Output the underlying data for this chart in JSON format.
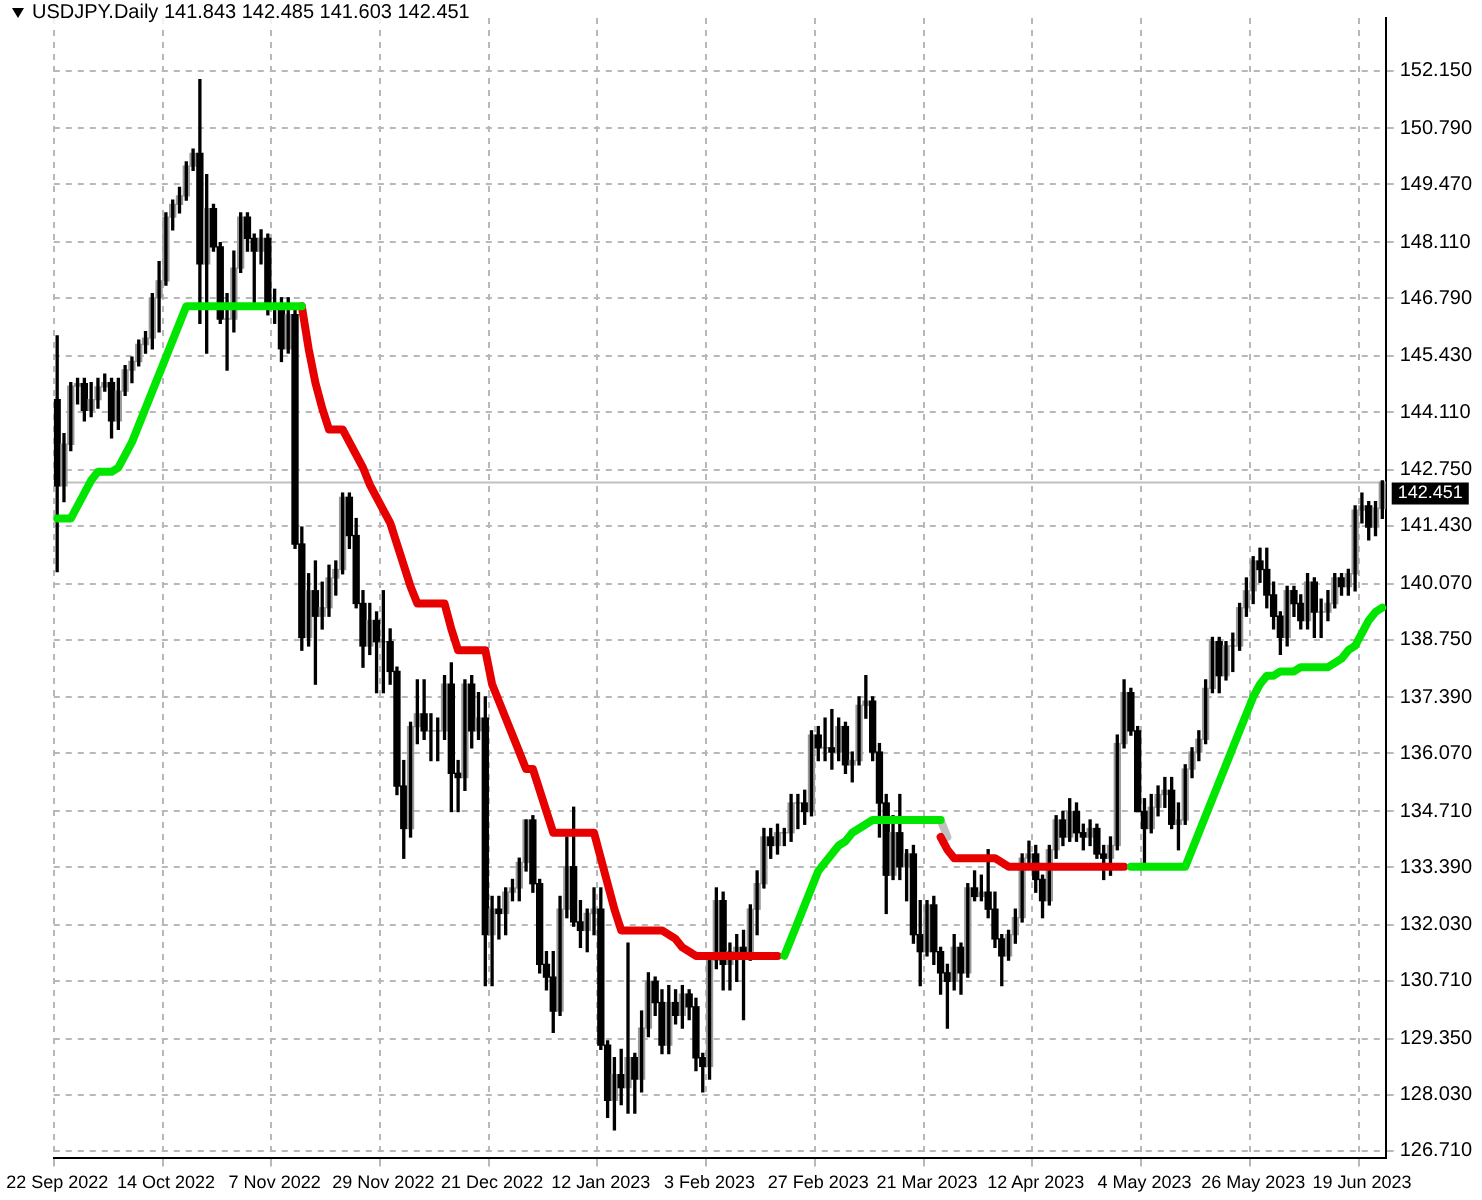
{
  "chart_data": {
    "type": "candlestick",
    "title": "USDJPY.Daily  141.843 142.485 141.603 142.451",
    "categories": [
      "22 Sep 2022",
      null,
      null,
      null,
      null,
      null,
      null,
      null,
      null,
      null,
      null,
      null,
      null,
      null,
      null,
      null,
      "14 Oct 2022",
      null,
      null,
      null,
      null,
      null,
      null,
      null,
      null,
      null,
      null,
      null,
      null,
      null,
      null,
      null,
      "7 Nov 2022",
      null,
      null,
      null,
      null,
      null,
      null,
      null,
      null,
      null,
      null,
      null,
      null,
      null,
      null,
      null,
      "29 Nov 2022",
      null,
      null,
      null,
      null,
      null,
      null,
      null,
      null,
      null,
      null,
      null,
      null,
      null,
      null,
      null,
      "21 Dec 2022",
      null,
      null,
      null,
      null,
      null,
      null,
      null,
      null,
      null,
      null,
      null,
      null,
      null,
      null,
      null,
      "12 Jan 2023",
      null,
      null,
      null,
      null,
      null,
      null,
      null,
      null,
      null,
      null,
      null,
      null,
      null,
      null,
      null,
      "3 Feb 2023",
      null,
      null,
      null,
      null,
      null,
      null,
      null,
      null,
      null,
      null,
      null,
      null,
      null,
      null,
      null,
      "27 Feb 2023",
      null,
      null,
      null,
      null,
      null,
      null,
      null,
      null,
      null,
      null,
      null,
      null,
      null,
      null,
      null,
      "21 Mar 2023",
      null,
      null,
      null,
      null,
      null,
      null,
      null,
      null,
      null,
      null,
      null,
      null,
      null,
      null,
      null,
      "12 Apr 2023",
      null,
      null,
      null,
      null,
      null,
      null,
      null,
      null,
      null,
      null,
      null,
      null,
      null,
      null,
      null,
      "4 May 2023",
      null,
      null,
      null,
      null,
      null,
      null,
      null,
      null,
      null,
      null,
      null,
      null,
      null,
      null,
      null,
      "26 May 2023",
      null,
      null,
      null,
      null,
      null,
      null,
      null,
      null,
      null,
      null,
      null,
      null,
      null,
      null,
      null,
      "19 Jun 2023",
      null,
      null,
      null
    ],
    "ohlc": [
      [
        144.4,
        145.9,
        140.35,
        142.37
      ],
      [
        142.37,
        143.6,
        142.0,
        143.35
      ],
      [
        143.35,
        144.8,
        143.2,
        144.72
      ],
      [
        144.72,
        144.9,
        144.3,
        144.78
      ],
      [
        144.78,
        144.9,
        143.9,
        144.15
      ],
      [
        144.15,
        144.8,
        144.0,
        144.4
      ],
      [
        144.4,
        144.9,
        144.2,
        144.7
      ],
      [
        144.7,
        145.0,
        144.6,
        144.8
      ],
      [
        144.8,
        144.9,
        143.5,
        143.9
      ],
      [
        143.9,
        144.9,
        143.7,
        144.6
      ],
      [
        144.6,
        145.2,
        144.5,
        145.1
      ],
      [
        145.1,
        145.4,
        144.8,
        145.3
      ],
      [
        145.3,
        145.8,
        145.2,
        145.7
      ],
      [
        145.7,
        146.0,
        145.5,
        145.85
      ],
      [
        145.85,
        146.9,
        145.6,
        146.8
      ],
      [
        146.8,
        147.65,
        146.0,
        147.2
      ],
      [
        147.2,
        148.8,
        147.1,
        148.7
      ],
      [
        148.7,
        149.1,
        148.4,
        149.0
      ],
      [
        149.0,
        149.4,
        148.8,
        149.2
      ],
      [
        149.2,
        150.0,
        149.1,
        149.9
      ],
      [
        149.9,
        150.3,
        149.8,
        150.2
      ],
      [
        150.2,
        151.94,
        146.2,
        147.6
      ],
      [
        147.6,
        149.7,
        145.5,
        148.9
      ],
      [
        148.9,
        149.0,
        147.9,
        148.0
      ],
      [
        148.0,
        148.1,
        146.2,
        146.3
      ],
      [
        146.3,
        146.9,
        145.1,
        146.3
      ],
      [
        146.3,
        147.9,
        146.0,
        147.5
      ],
      [
        147.5,
        148.8,
        147.4,
        148.7
      ],
      [
        148.7,
        148.8,
        147.9,
        148.2
      ],
      [
        148.2,
        148.3,
        146.6,
        147.9
      ],
      [
        147.9,
        148.4,
        147.6,
        148.2
      ],
      [
        148.2,
        148.3,
        146.4,
        146.6
      ],
      [
        146.6,
        147.0,
        146.2,
        146.6
      ],
      [
        146.6,
        146.8,
        145.3,
        145.6
      ],
      [
        145.6,
        146.8,
        145.5,
        146.4
      ],
      [
        146.4,
        146.6,
        140.9,
        141.0
      ],
      [
        141.0,
        141.4,
        138.5,
        138.8
      ],
      [
        138.8,
        140.3,
        138.6,
        139.9
      ],
      [
        139.9,
        140.6,
        137.7,
        139.3
      ],
      [
        139.3,
        140.1,
        139.0,
        139.5
      ],
      [
        139.5,
        140.5,
        139.3,
        140.2
      ],
      [
        140.2,
        140.6,
        139.8,
        140.4
      ],
      [
        140.4,
        142.2,
        140.3,
        142.1
      ],
      [
        142.1,
        142.2,
        140.9,
        141.2
      ],
      [
        141.2,
        141.6,
        139.5,
        139.6
      ],
      [
        139.6,
        139.9,
        138.1,
        138.6
      ],
      [
        138.6,
        139.6,
        138.4,
        139.2
      ],
      [
        139.2,
        139.4,
        137.5,
        138.7
      ],
      [
        138.7,
        139.9,
        137.5,
        138.7
      ],
      [
        138.7,
        139.0,
        137.7,
        138.0
      ],
      [
        138.0,
        138.1,
        135.1,
        135.3
      ],
      [
        135.3,
        135.9,
        133.6,
        134.3
      ],
      [
        134.3,
        136.8,
        134.1,
        136.7
      ],
      [
        136.7,
        137.8,
        136.3,
        137.0
      ],
      [
        137.0,
        137.8,
        136.4,
        136.6
      ],
      [
        136.6,
        137.0,
        135.9,
        136.6
      ],
      [
        136.6,
        136.9,
        135.9,
        136.6
      ],
      [
        136.6,
        137.9,
        136.4,
        137.7
      ],
      [
        137.7,
        138.2,
        134.7,
        135.6
      ],
      [
        135.6,
        135.9,
        134.7,
        135.5
      ],
      [
        135.5,
        137.8,
        135.2,
        137.7
      ],
      [
        137.7,
        137.9,
        136.2,
        136.6
      ],
      [
        136.6,
        137.5,
        136.4,
        136.9
      ],
      [
        136.9,
        137.4,
        130.6,
        131.8
      ],
      [
        131.8,
        132.7,
        130.6,
        132.4
      ],
      [
        132.4,
        132.7,
        131.7,
        132.3
      ],
      [
        132.3,
        132.9,
        131.8,
        132.8
      ],
      [
        132.8,
        133.1,
        132.6,
        132.9
      ],
      [
        132.9,
        133.6,
        132.6,
        133.5
      ],
      [
        133.5,
        134.5,
        133.3,
        134.5
      ],
      [
        134.5,
        134.6,
        132.8,
        133.0
      ],
      [
        133.0,
        133.1,
        130.9,
        131.1
      ],
      [
        131.1,
        131.4,
        130.5,
        130.8
      ],
      [
        130.8,
        131.4,
        129.5,
        130.0
      ],
      [
        130.0,
        132.7,
        129.9,
        132.4
      ],
      [
        132.4,
        134.1,
        132.2,
        133.4
      ],
      [
        133.4,
        134.8,
        132.0,
        132.1
      ],
      [
        132.1,
        132.6,
        131.5,
        131.9
      ],
      [
        131.9,
        132.4,
        131.4,
        132.3
      ],
      [
        132.3,
        132.9,
        131.8,
        132.4
      ],
      [
        132.4,
        132.9,
        129.1,
        129.2
      ],
      [
        129.2,
        129.3,
        127.5,
        127.9
      ],
      [
        127.9,
        128.9,
        127.2,
        128.5
      ],
      [
        128.5,
        129.1,
        127.8,
        128.2
      ],
      [
        128.2,
        131.6,
        127.6,
        128.9
      ],
      [
        128.9,
        129.0,
        127.6,
        128.4
      ],
      [
        128.4,
        130.0,
        128.1,
        129.6
      ],
      [
        129.6,
        130.9,
        129.4,
        130.7
      ],
      [
        130.7,
        130.8,
        129.9,
        130.2
      ],
      [
        130.2,
        130.5,
        129.0,
        129.2
      ],
      [
        129.2,
        130.6,
        129.0,
        130.2
      ],
      [
        130.2,
        130.5,
        129.7,
        129.9
      ],
      [
        129.9,
        130.6,
        129.6,
        130.4
      ],
      [
        130.4,
        130.5,
        129.8,
        130.1
      ],
      [
        130.1,
        130.3,
        128.6,
        128.9
      ],
      [
        128.9,
        129.0,
        128.1,
        128.7
      ],
      [
        128.7,
        131.3,
        128.4,
        131.2
      ],
      [
        131.2,
        132.9,
        131.0,
        132.6
      ],
      [
        132.6,
        132.8,
        130.5,
        131.1
      ],
      [
        131.1,
        131.6,
        130.5,
        131.4
      ],
      [
        131.4,
        131.8,
        130.7,
        131.5
      ],
      [
        131.5,
        131.9,
        129.8,
        131.4
      ],
      [
        131.4,
        132.5,
        131.2,
        132.4
      ],
      [
        132.4,
        133.3,
        131.8,
        133.0
      ],
      [
        133.0,
        134.3,
        132.9,
        134.1
      ],
      [
        134.1,
        134.3,
        133.6,
        133.9
      ],
      [
        133.9,
        134.4,
        133.7,
        134.2
      ],
      [
        134.2,
        134.3,
        133.9,
        134.2
      ],
      [
        134.2,
        135.1,
        134.0,
        134.9
      ],
      [
        134.9,
        135.1,
        134.3,
        134.9
      ],
      [
        134.9,
        135.2,
        134.4,
        134.7
      ],
      [
        134.7,
        136.6,
        134.6,
        136.5
      ],
      [
        136.5,
        136.7,
        135.9,
        136.2
      ],
      [
        136.2,
        136.9,
        135.9,
        136.2
      ],
      [
        136.2,
        137.1,
        135.7,
        136.1
      ],
      [
        136.1,
        136.9,
        135.9,
        136.7
      ],
      [
        136.7,
        136.8,
        135.6,
        135.8
      ],
      [
        135.8,
        136.1,
        135.4,
        135.9
      ],
      [
        135.9,
        137.4,
        135.8,
        137.2
      ],
      [
        137.2,
        137.9,
        136.9,
        137.3
      ],
      [
        137.3,
        137.4,
        135.9,
        136.1
      ],
      [
        136.1,
        136.3,
        134.1,
        134.9
      ],
      [
        134.9,
        135.1,
        132.3,
        133.2
      ],
      [
        133.2,
        134.6,
        133.1,
        134.2
      ],
      [
        134.2,
        135.1,
        133.1,
        133.4
      ],
      [
        133.4,
        133.8,
        132.6,
        133.7
      ],
      [
        133.7,
        133.9,
        131.6,
        131.8
      ],
      [
        131.8,
        132.6,
        130.6,
        131.4
      ],
      [
        131.4,
        132.6,
        131.3,
        132.5
      ],
      [
        132.5,
        132.7,
        131.1,
        131.4
      ],
      [
        131.4,
        131.5,
        130.4,
        130.9
      ],
      [
        130.9,
        131.1,
        129.6,
        130.7
      ],
      [
        130.7,
        131.8,
        130.5,
        131.5
      ],
      [
        131.5,
        131.6,
        130.4,
        130.9
      ],
      [
        130.9,
        133.0,
        130.8,
        132.9
      ],
      [
        132.9,
        133.3,
        132.6,
        132.7
      ],
      [
        132.7,
        133.2,
        132.6,
        132.8
      ],
      [
        132.8,
        133.8,
        132.2,
        132.4
      ],
      [
        132.4,
        132.8,
        131.5,
        131.7
      ],
      [
        131.7,
        131.8,
        130.6,
        131.3
      ],
      [
        131.3,
        131.9,
        131.2,
        131.8
      ],
      [
        131.8,
        132.4,
        131.6,
        132.2
      ],
      [
        132.2,
        133.7,
        132.1,
        133.6
      ],
      [
        133.6,
        134.0,
        133.4,
        133.7
      ],
      [
        133.7,
        133.9,
        132.8,
        133.1
      ],
      [
        133.1,
        133.2,
        132.2,
        132.6
      ],
      [
        132.6,
        133.9,
        132.5,
        133.8
      ],
      [
        133.8,
        134.6,
        133.6,
        134.5
      ],
      [
        134.5,
        134.7,
        133.9,
        134.1
      ],
      [
        134.1,
        135.0,
        134.0,
        134.7
      ],
      [
        134.7,
        134.9,
        134.0,
        134.2
      ],
      [
        134.2,
        134.4,
        133.8,
        134.1
      ],
      [
        134.1,
        134.5,
        133.9,
        134.3
      ],
      [
        134.3,
        134.4,
        133.6,
        133.7
      ],
      [
        133.7,
        133.9,
        133.1,
        133.6
      ],
      [
        133.6,
        134.1,
        133.2,
        133.9
      ],
      [
        133.9,
        136.5,
        133.8,
        136.3
      ],
      [
        136.3,
        137.8,
        136.2,
        137.5
      ],
      [
        137.5,
        137.6,
        136.5,
        136.6
      ],
      [
        136.6,
        136.7,
        134.7,
        134.7
      ],
      [
        134.7,
        135.0,
        133.5,
        134.3
      ],
      [
        134.3,
        135.1,
        134.2,
        134.8
      ],
      [
        134.8,
        135.3,
        134.6,
        135.1
      ],
      [
        135.1,
        135.5,
        134.8,
        135.2
      ],
      [
        135.2,
        135.5,
        134.3,
        134.4
      ],
      [
        134.4,
        134.9,
        133.8,
        134.5
      ],
      [
        134.5,
        135.8,
        134.4,
        135.7
      ],
      [
        135.7,
        136.2,
        135.5,
        136.1
      ],
      [
        136.1,
        136.6,
        135.9,
        136.4
      ],
      [
        136.4,
        137.8,
        136.3,
        137.6
      ],
      [
        137.6,
        138.8,
        137.5,
        138.7
      ],
      [
        138.7,
        138.8,
        137.5,
        137.9
      ],
      [
        137.9,
        138.7,
        137.8,
        138.6
      ],
      [
        138.6,
        138.9,
        138.0,
        138.6
      ],
      [
        138.6,
        139.6,
        138.5,
        139.5
      ],
      [
        139.5,
        140.2,
        139.3,
        139.9
      ],
      [
        139.9,
        140.7,
        139.6,
        140.6
      ],
      [
        140.6,
        140.9,
        140.1,
        140.4
      ],
      [
        140.4,
        140.9,
        139.5,
        139.8
      ],
      [
        139.8,
        140.1,
        139.0,
        139.3
      ],
      [
        139.3,
        139.4,
        138.4,
        138.8
      ],
      [
        138.8,
        140.0,
        138.6,
        139.9
      ],
      [
        139.9,
        140.0,
        139.3,
        139.6
      ],
      [
        139.6,
        139.8,
        139.0,
        139.2
      ],
      [
        139.2,
        140.3,
        139.0,
        140.1
      ],
      [
        140.1,
        140.2,
        138.8,
        139.4
      ],
      [
        139.4,
        139.7,
        138.8,
        139.4
      ],
      [
        139.4,
        139.9,
        139.2,
        139.6
      ],
      [
        139.6,
        140.3,
        139.5,
        140.2
      ],
      [
        140.2,
        140.3,
        139.8,
        140.0
      ],
      [
        140.0,
        140.4,
        139.8,
        140.3
      ],
      [
        140.3,
        141.9,
        139.9,
        141.8
      ],
      [
        141.8,
        142.2,
        141.5,
        141.9
      ],
      [
        141.9,
        142.0,
        141.1,
        141.4
      ],
      [
        141.4,
        142.0,
        141.2,
        141.843
      ],
      [
        141.843,
        142.485,
        141.603,
        142.451
      ]
    ],
    "series": [
      {
        "type": "line",
        "color": "#00e600",
        "values": [
          141.6,
          141.6,
          141.6,
          141.9,
          142.2,
          142.5,
          142.7,
          142.7,
          142.7,
          142.8,
          143.1,
          143.4,
          143.8,
          144.2,
          144.6,
          145.0,
          145.4,
          145.8,
          146.2,
          146.6,
          146.6,
          146.6,
          146.6,
          146.6,
          146.6,
          146.6,
          146.6,
          146.6,
          146.6,
          146.6,
          146.6,
          146.6,
          146.6,
          146.6,
          146.6,
          146.6,
          146.6,
          null,
          null,
          null,
          null,
          null,
          null,
          null,
          null,
          null,
          null,
          null,
          null,
          null,
          null,
          null,
          null,
          null,
          null,
          null,
          null,
          null,
          null,
          null,
          null,
          null,
          null,
          null,
          null,
          null,
          null,
          null,
          null,
          null,
          null,
          null,
          null,
          null,
          null,
          null,
          null,
          null,
          null,
          null,
          null,
          null,
          null,
          null,
          null,
          null,
          null,
          null,
          null,
          null,
          null,
          null,
          null,
          null,
          null,
          null,
          null,
          null,
          null,
          null,
          null,
          null,
          null,
          null,
          null,
          null,
          null,
          131.3,
          131.7,
          132.1,
          132.5,
          132.9,
          133.3,
          133.5,
          133.7,
          133.9,
          134.0,
          134.2,
          134.3,
          134.4,
          134.5,
          134.5,
          134.5,
          134.5,
          134.5,
          134.5,
          134.5,
          134.5,
          134.5,
          134.5,
          134.5,
          null,
          null,
          null,
          null,
          null,
          null,
          null,
          null,
          null,
          null,
          null,
          null,
          null,
          null,
          null,
          null,
          null,
          null,
          null,
          null,
          null,
          null,
          null,
          null,
          null,
          null,
          null,
          133.4,
          133.4,
          133.4,
          133.4,
          133.4,
          133.4,
          133.4,
          133.4,
          133.4,
          133.8,
          134.2,
          134.6,
          135.0,
          135.4,
          135.8,
          136.2,
          136.6,
          137.0,
          137.4,
          137.7,
          137.9,
          137.9,
          138.0,
          138.0,
          138.0,
          138.1,
          138.1,
          138.1,
          138.1,
          138.1,
          138.2,
          138.3,
          138.5,
          138.6,
          138.9,
          139.2,
          139.4,
          139.5
        ]
      },
      {
        "type": "line",
        "color": "#e60000",
        "values": [
          null,
          null,
          null,
          null,
          null,
          null,
          null,
          null,
          null,
          null,
          null,
          null,
          null,
          null,
          null,
          null,
          null,
          null,
          null,
          null,
          null,
          null,
          null,
          null,
          null,
          null,
          null,
          null,
          null,
          null,
          null,
          null,
          null,
          null,
          null,
          null,
          146.6,
          145.6,
          144.8,
          144.2,
          143.7,
          143.7,
          143.7,
          143.4,
          143.1,
          142.8,
          142.4,
          142.1,
          141.8,
          141.5,
          141.0,
          140.5,
          140.0,
          139.6,
          139.6,
          139.6,
          139.6,
          139.6,
          139.0,
          138.5,
          138.5,
          138.5,
          138.5,
          138.5,
          137.7,
          137.3,
          136.9,
          136.5,
          136.1,
          135.7,
          135.7,
          135.2,
          134.7,
          134.2,
          134.2,
          134.2,
          134.2,
          134.2,
          134.2,
          134.2,
          133.6,
          133.0,
          132.4,
          131.9,
          131.9,
          131.9,
          131.9,
          131.9,
          131.9,
          131.9,
          131.8,
          131.7,
          131.5,
          131.4,
          131.3,
          131.3,
          131.3,
          131.3,
          131.3,
          131.3,
          131.3,
          131.3,
          131.3,
          131.3,
          131.3,
          131.3,
          131.3,
          null,
          null,
          null,
          null,
          null,
          null,
          null,
          null,
          null,
          null,
          null,
          null,
          null,
          null,
          null,
          null,
          null,
          null,
          null,
          null,
          null,
          null,
          null,
          134.1,
          133.8,
          133.6,
          133.6,
          133.6,
          133.6,
          133.6,
          133.6,
          133.6,
          133.5,
          133.4,
          133.4,
          133.4,
          133.4,
          133.4,
          133.4,
          133.4,
          133.4,
          133.4,
          133.4,
          133.4,
          133.4,
          133.4,
          133.4,
          133.4,
          133.4,
          133.4,
          133.4,
          null,
          null,
          null,
          null,
          null,
          null,
          null,
          null,
          null,
          null,
          null,
          null,
          null,
          null,
          null,
          null,
          null,
          null,
          null,
          null,
          null,
          null,
          null,
          null,
          null,
          null,
          null,
          null,
          null,
          null,
          null,
          null,
          null,
          null,
          null,
          null,
          null,
          null
        ]
      },
      {
        "type": "line",
        "color": "#c0c0c0",
        "values": [
          null,
          null,
          null,
          null,
          null,
          null,
          null,
          null,
          null,
          null,
          null,
          null,
          null,
          null,
          null,
          null,
          null,
          null,
          null,
          null,
          null,
          null,
          null,
          null,
          null,
          null,
          null,
          null,
          null,
          null,
          null,
          null,
          null,
          null,
          null,
          null,
          null,
          null,
          null,
          null,
          null,
          null,
          null,
          null,
          null,
          null,
          null,
          null,
          null,
          null,
          null,
          null,
          null,
          null,
          null,
          null,
          null,
          null,
          null,
          null,
          null,
          null,
          null,
          null,
          null,
          null,
          null,
          null,
          null,
          null,
          null,
          null,
          null,
          null,
          null,
          null,
          null,
          null,
          null,
          null,
          null,
          null,
          null,
          null,
          null,
          null,
          null,
          null,
          null,
          null,
          null,
          null,
          null,
          null,
          null,
          null,
          null,
          null,
          null,
          null,
          null,
          null,
          null,
          null,
          null,
          null,
          null,
          null,
          null,
          null,
          null,
          null,
          null,
          null,
          null,
          null,
          null,
          null,
          null,
          null,
          null,
          null,
          null,
          null,
          null,
          null,
          null,
          null,
          null,
          null,
          134.5,
          134.1,
          null,
          null,
          null,
          null,
          null,
          null,
          null,
          null,
          null,
          null,
          null,
          null,
          null,
          null,
          null,
          null,
          null,
          null,
          null,
          null,
          null,
          null,
          null,
          null,
          null,
          null,
          null,
          null,
          null,
          null,
          null,
          null,
          null,
          null,
          null,
          null,
          null,
          null,
          null,
          null,
          null,
          null,
          null,
          null,
          null,
          null,
          null,
          null,
          null,
          null,
          null,
          null,
          null,
          null,
          null,
          null,
          null,
          null,
          null,
          null,
          null,
          null,
          null,
          null
        ]
      }
    ],
    "ylim": [
      126.53,
      153.39
    ],
    "yticks": [
      {
        "value": 126.71,
        "label": "126.710"
      },
      {
        "value": 128.03,
        "label": "128.030"
      },
      {
        "value": 129.35,
        "label": "129.350"
      },
      {
        "value": 130.71,
        "label": "130.710"
      },
      {
        "value": 132.03,
        "label": "132.030"
      },
      {
        "value": 133.39,
        "label": "133.390"
      },
      {
        "value": 134.71,
        "label": "134.710"
      },
      {
        "value": 136.07,
        "label": "136.070"
      },
      {
        "value": 137.39,
        "label": "137.390"
      },
      {
        "value": 138.75,
        "label": "138.750"
      },
      {
        "value": 140.07,
        "label": "140.070"
      },
      {
        "value": 141.43,
        "label": "141.430"
      },
      {
        "value": 142.75,
        "label": "142.750"
      },
      {
        "value": 144.11,
        "label": "144.110"
      },
      {
        "value": 145.43,
        "label": "145.430"
      },
      {
        "value": 146.79,
        "label": "146.790"
      },
      {
        "value": 148.11,
        "label": "148.110"
      },
      {
        "value": 149.47,
        "label": "149.470"
      },
      {
        "value": 150.79,
        "label": "150.790"
      },
      {
        "value": 152.15,
        "label": "152.150"
      }
    ],
    "grid": true,
    "ref_lines": [
      {
        "axis": "y",
        "value": 142.451,
        "label": "142.451",
        "color": "#c0c0c0"
      }
    ]
  }
}
